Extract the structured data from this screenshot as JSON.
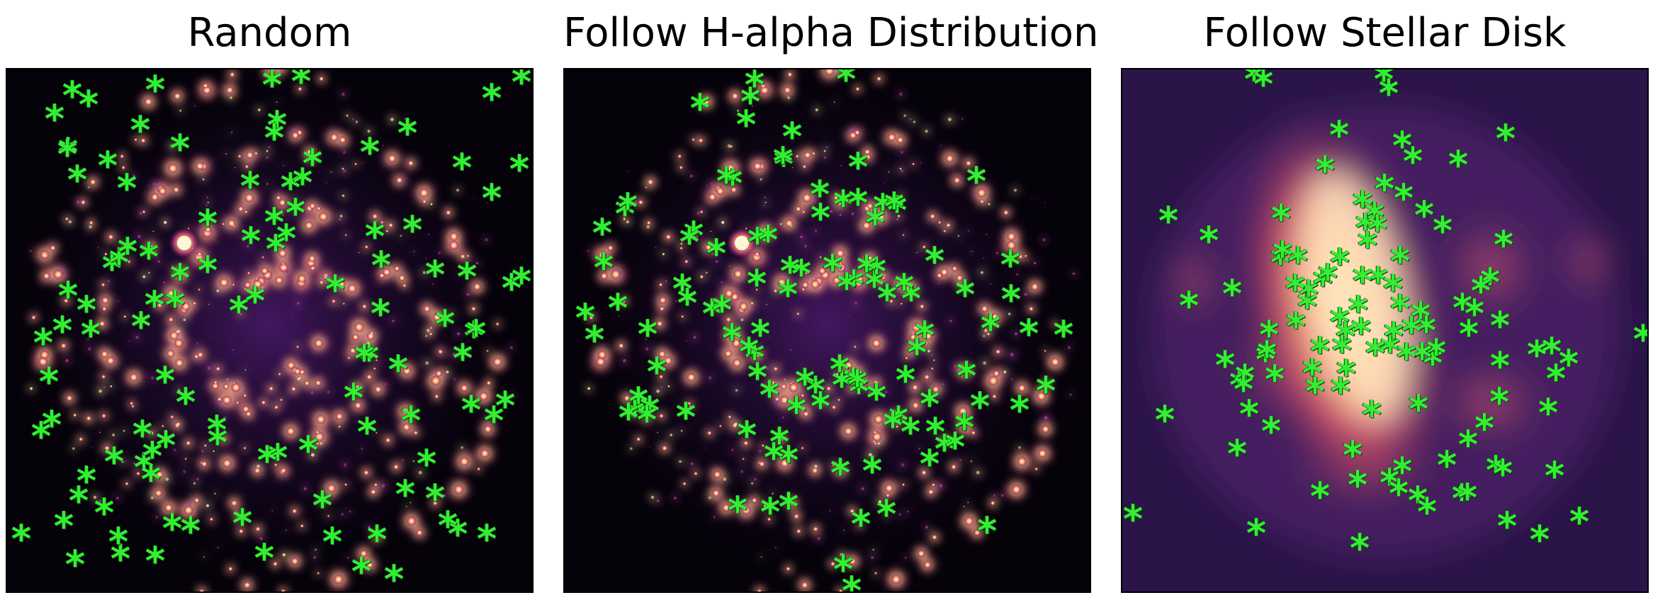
{
  "panels": [
    {
      "id": "random",
      "title": "Random",
      "background": "halpha"
    },
    {
      "id": "halpha",
      "title": "Follow H-alpha Distribution",
      "background": "halpha"
    },
    {
      "id": "stellar",
      "title": "Follow Stellar Disk",
      "background": "stellar"
    }
  ],
  "marker_symbol": "*",
  "colors": {
    "marker": "#33ee33",
    "halpha_bg": "#05020a",
    "halpha_glow": "#fff2c0",
    "stellar_bg": "#2a1448",
    "stellar_core": "#fff0d0"
  }
}
